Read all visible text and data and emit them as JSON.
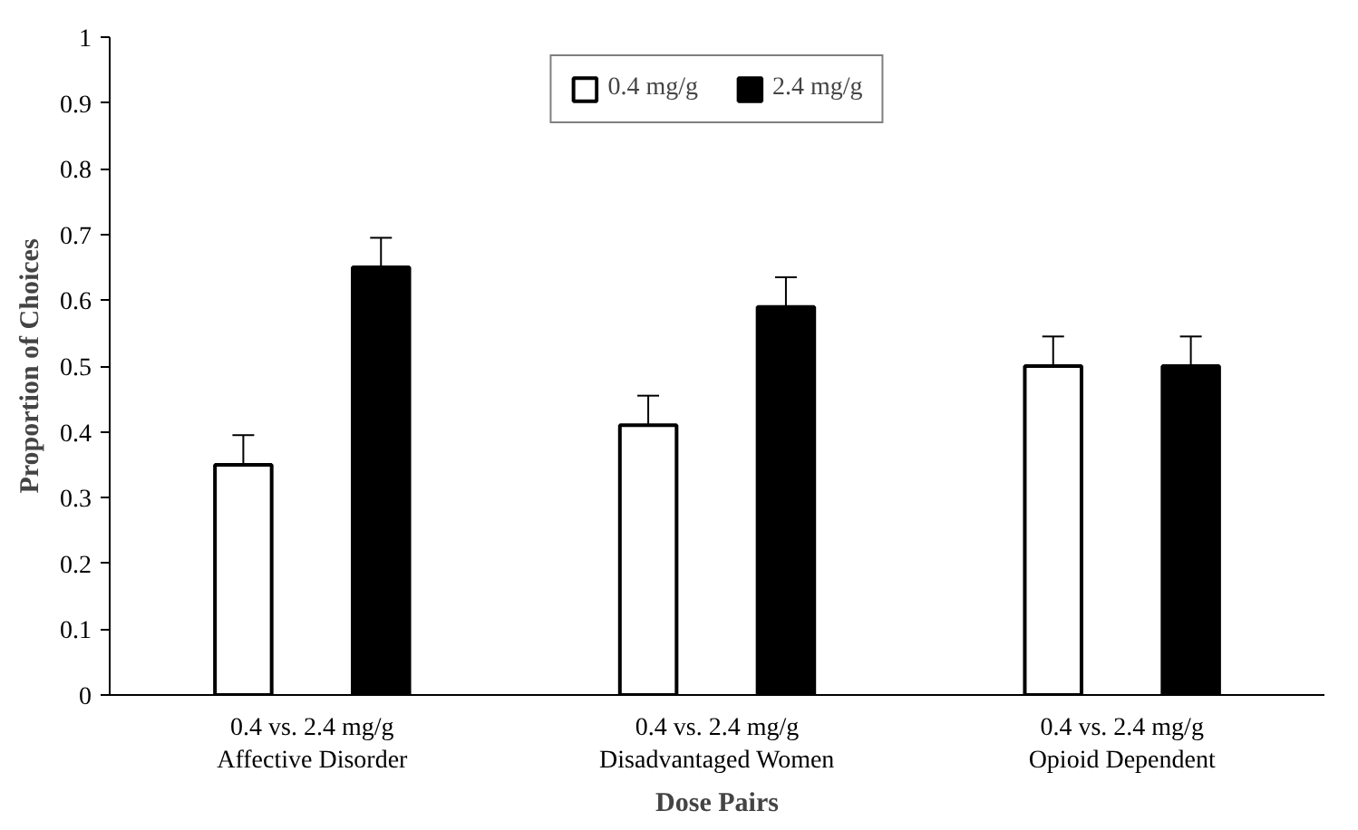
{
  "chart_data": {
    "type": "bar",
    "xlabel": "Dose Pairs",
    "ylabel": "Proportion of Choices",
    "categories": [
      "0.4 vs. 2.4 mg/g\nAffective Disorder",
      "0.4 vs. 2.4 mg/g\nDisadvantaged Women",
      "0.4 vs. 2.4 mg/g\nOpioid Dependent"
    ],
    "series": [
      {
        "name": "0.4 mg/g",
        "color": "#ffffff",
        "values": [
          0.35,
          0.41,
          0.5
        ],
        "errors": [
          0.045,
          0.045,
          0.045
        ]
      },
      {
        "name": "2.4 mg/g",
        "color": "#000000",
        "values": [
          0.65,
          0.59,
          0.5
        ],
        "errors": [
          0.045,
          0.045,
          0.045
        ]
      }
    ],
    "ylim": [
      0,
      1
    ],
    "yticks": [
      0,
      0.1,
      0.2,
      0.3,
      0.4,
      0.5,
      0.6,
      0.7,
      0.8,
      0.9,
      1
    ],
    "grid": false,
    "legend": "top"
  }
}
